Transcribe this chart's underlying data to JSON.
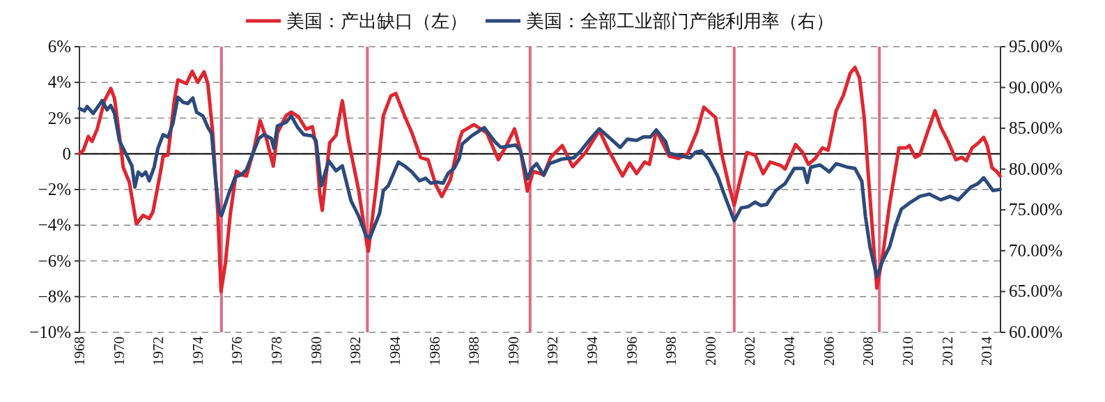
{
  "chart_data": {
    "type": "line",
    "xlim": [
      1968,
      2014.7
    ],
    "xticks": [
      1968,
      1970,
      1972,
      1974,
      1976,
      1978,
      1980,
      1982,
      1984,
      1986,
      1988,
      1990,
      1992,
      1994,
      1996,
      1998,
      2000,
      2002,
      2004,
      2006,
      2008,
      2010,
      2012,
      2014
    ],
    "ylim": [
      -10,
      6
    ],
    "yticks": [
      {
        "value": -10,
        "label": "−10%"
      },
      {
        "value": -8,
        "label": "−8%"
      },
      {
        "value": -6,
        "label": "−6%"
      },
      {
        "value": -4,
        "label": "−4%"
      },
      {
        "value": -2,
        "label": "−2%"
      },
      0,
      {
        "value": 2,
        "label": "2%"
      },
      {
        "value": 4,
        "label": "4%"
      },
      {
        "value": 6,
        "label": "6%"
      }
    ],
    "y2lim": [
      60,
      95
    ],
    "y2ticks": [
      {
        "value": 60,
        "label": "60.00%"
      },
      {
        "value": 65,
        "label": "65.00%"
      },
      {
        "value": 70,
        "label": "70.00%"
      },
      {
        "value": 75,
        "label": "75.00%"
      },
      {
        "value": 80,
        "label": "80.00%"
      },
      {
        "value": 85,
        "label": "85.00%"
      },
      {
        "value": 90,
        "label": "90.00%"
      },
      {
        "value": 95,
        "label": "95.00%"
      }
    ],
    "grid": "y",
    "legend": "top",
    "ref_lines": [
      {
        "axis": "y",
        "value": 0,
        "color": "#000000"
      },
      {
        "axis": "x",
        "value": 1975.2,
        "color": "#e06a80"
      },
      {
        "axis": "x",
        "value": 1982.6,
        "color": "#e06a80"
      },
      {
        "axis": "x",
        "value": 1990.85,
        "color": "#e06a80"
      },
      {
        "axis": "x",
        "value": 2001.2,
        "color": "#e06a80"
      },
      {
        "axis": "x",
        "value": 2008.56,
        "color": "#e06a80"
      }
    ],
    "series": [
      {
        "name": "美国：产出缺口（左）",
        "color": "#e0262f",
        "x": [
          1968.0,
          1968.2,
          1968.45,
          1968.64,
          1968.9,
          1969.27,
          1969.59,
          1969.78,
          1970.09,
          1970.22,
          1970.53,
          1970.89,
          1971.23,
          1971.54,
          1971.73,
          1972.11,
          1972.24,
          1972.49,
          1972.81,
          1972.99,
          1973.43,
          1973.72,
          1974.0,
          1974.32,
          1974.51,
          1974.76,
          1975.02,
          1975.18,
          1975.4,
          1975.65,
          1975.96,
          1976.21,
          1976.47,
          1976.84,
          1977.16,
          1977.47,
          1977.83,
          1978.04,
          1978.48,
          1978.74,
          1979.11,
          1979.49,
          1979.81,
          1980.0,
          1980.19,
          1980.31,
          1980.69,
          1981.01,
          1981.33,
          1981.64,
          1982.15,
          1982.59,
          1982.65,
          1983.03,
          1983.41,
          1983.79,
          1984.04,
          1984.48,
          1984.86,
          1985.3,
          1985.68,
          1986.06,
          1986.37,
          1986.81,
          1987.26,
          1987.41,
          1988.0,
          1988.65,
          1989.24,
          1989.65,
          1990.06,
          1990.36,
          1990.71,
          1991.01,
          1991.54,
          1991.89,
          1992.48,
          1993.01,
          1993.66,
          1994.36,
          1994.83,
          1995.54,
          1995.9,
          1996.25,
          1996.66,
          1996.9,
          1997.25,
          1997.9,
          1998.37,
          1998.84,
          1999.31,
          1999.66,
          2000.25,
          2000.55,
          2000.9,
          2001.2,
          2001.49,
          2001.84,
          2002.26,
          2002.67,
          2003.02,
          2003.55,
          2003.78,
          2004.31,
          2004.67,
          2004.96,
          2005.31,
          2005.67,
          2005.96,
          2006.37,
          2006.73,
          2007.08,
          2007.32,
          2007.55,
          2007.79,
          2008.02,
          2008.26,
          2008.43,
          2008.73,
          2009.08,
          2009.55,
          2009.91,
          2010.08,
          2010.38,
          2010.61,
          2010.97,
          2011.38,
          2011.67,
          2012.03,
          2012.44,
          2012.73,
          2012.97,
          2013.26,
          2013.56,
          2013.85,
          2014.03,
          2014.27,
          2014.5,
          2014.68
        ],
        "values": [
          0,
          0.2,
          0.97,
          0.69,
          1.38,
          2.97,
          3.66,
          3.1,
          0.48,
          -0.76,
          -1.59,
          -3.93,
          -3.45,
          -3.63,
          -3.24,
          -1.03,
          -0.14,
          -0.07,
          2.97,
          4.14,
          3.93,
          4.62,
          4.0,
          4.59,
          3.93,
          1.17,
          -3.38,
          -7.72,
          -6.14,
          -3.38,
          -0.97,
          -1.17,
          -1.24,
          0.21,
          1.86,
          0.9,
          -0.69,
          1.17,
          2.14,
          2.34,
          2.07,
          1.38,
          1.52,
          0.48,
          -2.28,
          -3.17,
          0.62,
          1.03,
          2.97,
          0.76,
          -2.0,
          -5.17,
          -5.45,
          -2.0,
          2.14,
          3.24,
          3.38,
          2.14,
          1.17,
          -0.21,
          -0.34,
          -1.72,
          -2.39,
          -1.45,
          0.76,
          1.24,
          1.63,
          1.18,
          -0.33,
          0.46,
          1.4,
          0.2,
          -2.09,
          -0.98,
          -1.18,
          -0.2,
          0.46,
          -0.72,
          0.07,
          1.31,
          0.2,
          -1.24,
          -0.52,
          -1.11,
          -0.46,
          -0.59,
          1.31,
          -0.13,
          -0.26,
          0,
          1.24,
          2.61,
          2.03,
          0.07,
          -1.63,
          -2.88,
          -1.5,
          0.07,
          -0.07,
          -1.11,
          -0.46,
          -0.65,
          -0.85,
          0.52,
          0.07,
          -0.59,
          -0.26,
          0.33,
          0.2,
          2.42,
          3.27,
          4.51,
          4.84,
          4.25,
          2.03,
          -1.5,
          -5.03,
          -7.52,
          -5.69,
          -2.81,
          0.33,
          0.33,
          0.46,
          -0.2,
          -0.07,
          1.11,
          2.42,
          1.5,
          0.72,
          -0.33,
          -0.2,
          -0.39,
          0.33,
          0.59,
          0.92,
          0.46,
          -0.78,
          -0.98,
          -1.24
        ]
      },
      {
        "name": "美国：全部工业部门产能利用率（右）",
        "color": "#2c4a7c",
        "axis": "y2",
        "x": [
          1968.0,
          1968.26,
          1968.39,
          1968.7,
          1969.15,
          1969.4,
          1969.59,
          1969.78,
          1970.03,
          1970.41,
          1970.66,
          1970.81,
          1970.98,
          1971.17,
          1971.36,
          1971.54,
          1971.79,
          1971.98,
          1972.24,
          1972.49,
          1972.74,
          1972.99,
          1973.25,
          1973.5,
          1973.75,
          1973.94,
          1974.26,
          1974.51,
          1974.7,
          1974.89,
          1975.08,
          1975.2,
          1975.58,
          1975.9,
          1976.21,
          1976.47,
          1976.72,
          1977.1,
          1977.35,
          1977.73,
          1977.86,
          1978.04,
          1978.48,
          1978.74,
          1979.06,
          1979.37,
          1979.81,
          1980.0,
          1980.26,
          1980.64,
          1981.01,
          1981.33,
          1981.77,
          1982.15,
          1982.53,
          1982.72,
          1983.22,
          1983.41,
          1983.66,
          1984.17,
          1984.48,
          1984.86,
          1985.24,
          1985.55,
          1985.81,
          1986.12,
          1986.44,
          1986.69,
          1987.0,
          1987.26,
          1987.41,
          1987.89,
          1988.53,
          1989.06,
          1989.36,
          1990.12,
          1990.36,
          1990.71,
          1990.95,
          1991.18,
          1991.54,
          1991.83,
          1992.48,
          1993.07,
          1993.42,
          1993.89,
          1994.36,
          1994.83,
          1995.42,
          1995.78,
          1996.25,
          1996.6,
          1996.95,
          1997.25,
          1997.72,
          1997.9,
          1998.37,
          1998.96,
          1999.25,
          1999.55,
          1999.9,
          2000.37,
          2000.66,
          2001.2,
          2001.55,
          2001.9,
          2002.26,
          2002.55,
          2002.84,
          2003.31,
          2003.78,
          2004.25,
          2004.72,
          2004.9,
          2005.08,
          2005.55,
          2006.02,
          2006.37,
          2006.96,
          2007.32,
          2007.67,
          2007.85,
          2008.08,
          2008.43,
          2008.73,
          2009.08,
          2009.38,
          2009.67,
          2010.14,
          2010.61,
          2011.08,
          2011.67,
          2012.14,
          2012.56,
          2012.85,
          2013.2,
          2013.56,
          2013.85,
          2014.32,
          2014.68
        ],
        "values": [
          87.43,
          87.12,
          87.67,
          86.81,
          88.4,
          87.27,
          87.79,
          86.81,
          83.45,
          81.62,
          80.4,
          77.8,
          79.64,
          79.18,
          79.64,
          78.57,
          80.25,
          82.54,
          84.22,
          83.91,
          85.59,
          88.8,
          88.19,
          88.04,
          88.71,
          86.97,
          86.51,
          85.13,
          84.37,
          79.18,
          74.9,
          74.29,
          77.04,
          79.03,
          79.33,
          79.94,
          81.47,
          83.76,
          84.22,
          83.76,
          82.54,
          85.29,
          85.74,
          86.51,
          85.13,
          84.22,
          84.07,
          83.45,
          77.96,
          81.02,
          79.79,
          80.4,
          76.12,
          74.29,
          71.85,
          71.54,
          74.6,
          77.35,
          77.96,
          80.86,
          80.4,
          79.64,
          78.57,
          78.88,
          78.27,
          78.42,
          78.27,
          79.48,
          80.1,
          81.32,
          83.09,
          84.09,
          85.08,
          83.37,
          82.66,
          82.95,
          82.23,
          78.81,
          80.1,
          80.67,
          79.24,
          80.67,
          81.24,
          81.38,
          82.23,
          83.66,
          84.94,
          83.94,
          82.66,
          83.66,
          83.52,
          83.94,
          83.94,
          84.8,
          83.37,
          81.95,
          81.66,
          81.38,
          82.09,
          82.23,
          81.24,
          79.1,
          77.1,
          73.68,
          75.25,
          75.39,
          75.96,
          75.54,
          75.66,
          77.37,
          78.23,
          80.09,
          80.09,
          78.37,
          80.23,
          80.51,
          79.66,
          80.66,
          80.23,
          80.09,
          78.51,
          74.23,
          70.51,
          66.8,
          68.8,
          70.51,
          73.09,
          75.09,
          75.94,
          76.66,
          76.94,
          76.23,
          76.66,
          76.23,
          76.94,
          77.8,
          78.23,
          78.94,
          77.37,
          77.51
        ]
      }
    ]
  }
}
